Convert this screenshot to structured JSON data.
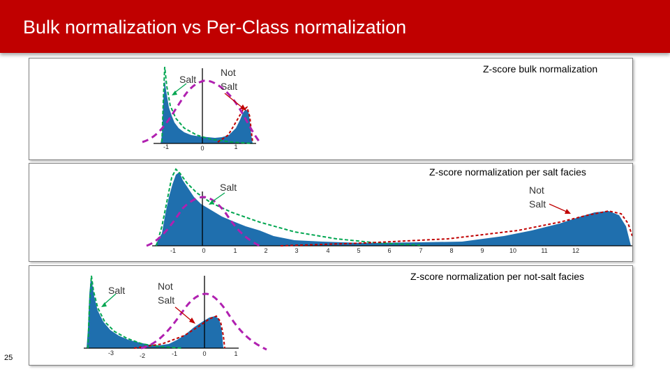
{
  "slide": {
    "title": "Bulk normalization vs Per-Class normalization",
    "page_number": "25"
  },
  "colors": {
    "header": "#c00000",
    "histogram": "#1f6fae",
    "salt_curve": "#00a650",
    "not_salt_curve": "#c00000",
    "gaussian": "#b020b0"
  },
  "panels": [
    {
      "title": "Z-score bulk normalization",
      "salt_label": "Salt",
      "not_salt_label": [
        "Not",
        "Salt"
      ],
      "ticks": [
        "-1",
        "0",
        "1"
      ]
    },
    {
      "title": "Z-score normalization per salt facies",
      "salt_label": "Salt",
      "not_salt_label": [
        "Not",
        "Salt"
      ],
      "ticks": [
        "-1",
        "0",
        "1",
        "2",
        "3",
        "4",
        "5",
        "6",
        "7",
        "8",
        "9",
        "10",
        "11",
        "12"
      ]
    },
    {
      "title": "Z-score normalization per not-salt facies",
      "salt_label": "Salt",
      "not_salt_label": [
        "Not",
        "Salt"
      ],
      "ticks": [
        "-3",
        "-2",
        "-1",
        "0",
        "1"
      ]
    }
  ]
}
